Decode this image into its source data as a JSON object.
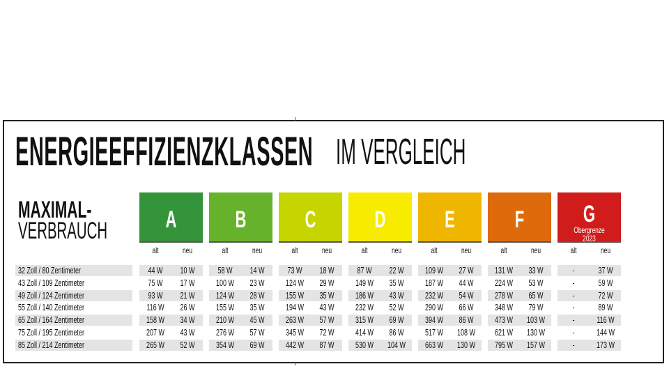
{
  "title": {
    "bold": "ENERGIEEFFIZIENZKLASSEN",
    "light": "IM VERGLEICH"
  },
  "row_header": {
    "line1": "MAXIMAL-",
    "line2": "VERBRAUCH"
  },
  "sub_labels": {
    "old": "alt",
    "new": "neu"
  },
  "classes": [
    {
      "letter": "A",
      "color": "#33943a",
      "note": ""
    },
    {
      "letter": "B",
      "color": "#66b22a",
      "note": ""
    },
    {
      "letter": "C",
      "color": "#c6d400",
      "note": ""
    },
    {
      "letter": "D",
      "color": "#f7ec00",
      "note": ""
    },
    {
      "letter": "E",
      "color": "#efb600",
      "note": ""
    },
    {
      "letter": "F",
      "color": "#df6a0b",
      "note": ""
    },
    {
      "letter": "G",
      "color": "#d11c1c",
      "note": "Obergrenze 2023"
    }
  ],
  "rows": [
    {
      "label": "32 Zoll / 80 Zentimeter",
      "values": [
        "44 W",
        "10 W",
        "58 W",
        "14 W",
        "73 W",
        "18 W",
        "87 W",
        "22 W",
        "109 W",
        "27 W",
        "131 W",
        "33 W",
        "-",
        "37 W"
      ]
    },
    {
      "label": "43 Zoll / 109 Zentimeter",
      "values": [
        "75 W",
        "17 W",
        "100 W",
        "23 W",
        "124 W",
        "29 W",
        "149 W",
        "35 W",
        "187 W",
        "44 W",
        "224 W",
        "53 W",
        "-",
        "59 W"
      ]
    },
    {
      "label": "49 Zoll / 124 Zentimeter",
      "values": [
        "93 W",
        "21 W",
        "124 W",
        "28 W",
        "155 W",
        "35 W",
        "186 W",
        "43 W",
        "232 W",
        "54 W",
        "278 W",
        "65 W",
        "-",
        "72 W"
      ]
    },
    {
      "label": "55 Zoll / 140 Zentimeter",
      "values": [
        "116 W",
        "26 W",
        "155 W",
        "35 W",
        "194 W",
        "43 W",
        "232 W",
        "52 W",
        "290 W",
        "66 W",
        "348 W",
        "79 W",
        "-",
        "89 W"
      ]
    },
    {
      "label": "65 Zoll / 164 Zentimeter",
      "values": [
        "158 W",
        "34 W",
        "210 W",
        "45 W",
        "263 W",
        "57 W",
        "315 W",
        "69 W",
        "394 W",
        "86 W",
        "473 W",
        "103 W",
        "-",
        "116 W"
      ]
    },
    {
      "label": "75 Zoll / 195 Zentimeter",
      "values": [
        "207 W",
        "43 W",
        "276 W",
        "57 W",
        "345 W",
        "72 W",
        "414 W",
        "86 W",
        "517 W",
        "108 W",
        "621 W",
        "130 W",
        "-",
        "144 W"
      ]
    },
    {
      "label": "85 Zoll / 214 Zentimeter",
      "values": [
        "265 W",
        "52 W",
        "354 W",
        "69 W",
        "442 W",
        "87 W",
        "530 W",
        "104 W",
        "663 W",
        "130 W",
        "795 W",
        "157 W",
        "-",
        "173 W"
      ]
    }
  ]
}
